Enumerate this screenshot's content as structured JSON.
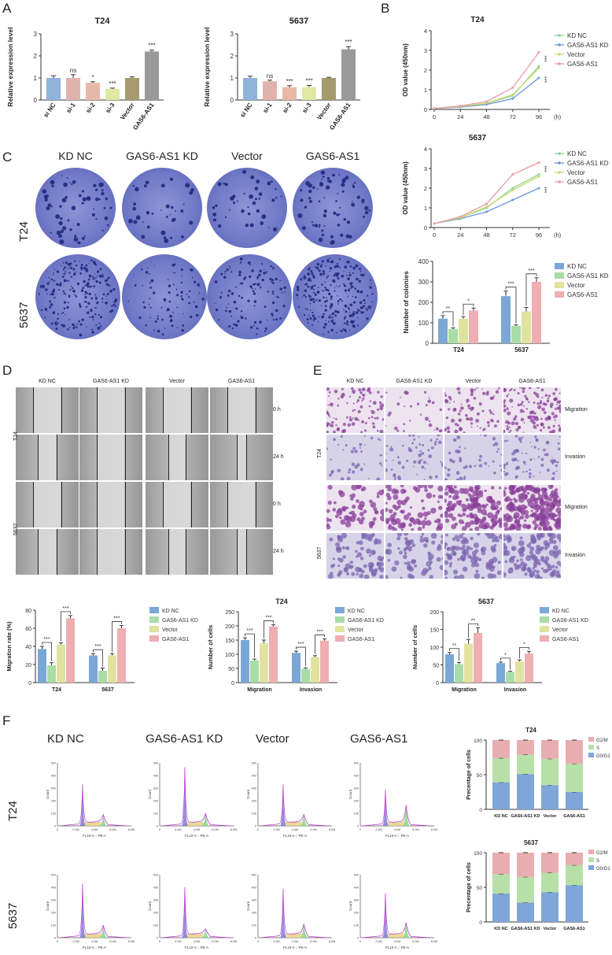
{
  "panels": {
    "a": "A",
    "b": "B",
    "c": "C",
    "d": "D",
    "e": "E",
    "f": "F"
  },
  "colors": {
    "si_nc": "#8fb3da",
    "si_1": "#e0b2ae",
    "si_2": "#e8b8a6",
    "si_3": "#dfe9a2",
    "vector_bar": "#a59b6e",
    "gas6_bar": "#9a9a9a",
    "kd_nc": "#7aa7d6",
    "kd": "#a9dca6",
    "vector": "#e1e2a0",
    "gas6": "#eeaeb2",
    "line_kdnc": "#8fd49a",
    "line_kd": "#6b97d6",
    "line_vector": "#c8da6a",
    "line_gas6": "#ea9aa5",
    "crystal": "#4b53b0",
    "dish": "#6e78c8",
    "g2m": "#e8adb0",
    "s": "#b6e0a8",
    "g0g1": "#7ea6d8"
  },
  "chart_data": [
    {
      "id": "A-T24",
      "type": "bar",
      "title": "T24",
      "ylabel": "Relative expression level",
      "ylim": [
        0,
        3
      ],
      "yticks": [
        "0",
        "1",
        "2",
        "3"
      ],
      "categories": [
        "si NC",
        "si-1",
        "si-2",
        "si-3",
        "Vector",
        "GAS6-AS1"
      ],
      "values": [
        1.0,
        1.0,
        0.78,
        0.5,
        1.0,
        2.2
      ],
      "errors": [
        0.1,
        0.15,
        0.05,
        0.04,
        0.05,
        0.06
      ],
      "significance": [
        "",
        "ns",
        "*",
        "***",
        "",
        "***"
      ]
    },
    {
      "id": "A-5637",
      "type": "bar",
      "title": "5637",
      "ylabel": "Relative expression level",
      "ylim": [
        0,
        3
      ],
      "yticks": [
        "0",
        "1",
        "2",
        "3"
      ],
      "categories": [
        "si NC",
        "si-1",
        "si-2",
        "si-3",
        "Vector",
        "GAS6-AS1"
      ],
      "values": [
        1.0,
        0.85,
        0.58,
        0.58,
        1.0,
        2.3
      ],
      "errors": [
        0.08,
        0.05,
        0.07,
        0.08,
        0.03,
        0.12
      ],
      "significance": [
        "",
        "ns",
        "***",
        "***",
        "",
        "***"
      ]
    },
    {
      "id": "B-T24",
      "type": "line",
      "title": "T24",
      "ylabel": "OD value (450nm)",
      "xlabel": "(h)",
      "ylim": [
        0,
        4
      ],
      "yticks": [
        "0",
        "1",
        "2",
        "3",
        "4"
      ],
      "x": [
        0,
        24,
        48,
        72,
        96
      ],
      "xticks": [
        "0",
        "24",
        "48",
        "72",
        "96"
      ],
      "series": [
        {
          "name": "KD NC",
          "values": [
            0.05,
            0.15,
            0.3,
            0.7,
            2.2
          ]
        },
        {
          "name": "GAS6-AS1 KD",
          "values": [
            0.05,
            0.12,
            0.25,
            0.55,
            1.6
          ]
        },
        {
          "name": "Vector",
          "values": [
            0.05,
            0.15,
            0.32,
            0.75,
            2.1
          ]
        },
        {
          "name": "GAS6-AS1",
          "values": [
            0.05,
            0.18,
            0.4,
            1.1,
            2.9
          ]
        }
      ],
      "significance": [
        "***",
        "***"
      ]
    },
    {
      "id": "B-5637",
      "type": "line",
      "title": "5637",
      "ylabel": "OD value (450nm)",
      "xlabel": "(h)",
      "ylim": [
        0,
        4
      ],
      "yticks": [
        "0",
        "1",
        "2",
        "3",
        "4"
      ],
      "x": [
        0,
        24,
        48,
        72,
        96
      ],
      "xticks": [
        "0",
        "24",
        "48",
        "72",
        "96"
      ],
      "series": [
        {
          "name": "KD NC",
          "values": [
            0.2,
            0.5,
            1.0,
            2.0,
            2.7
          ]
        },
        {
          "name": "GAS6-AS1 KD",
          "values": [
            0.2,
            0.45,
            0.8,
            1.4,
            2.0
          ]
        },
        {
          "name": "Vector",
          "values": [
            0.2,
            0.5,
            1.05,
            1.9,
            2.6
          ]
        },
        {
          "name": "GAS6-AS1",
          "values": [
            0.2,
            0.55,
            1.2,
            2.7,
            3.3
          ]
        }
      ],
      "significance": [
        "***",
        "***"
      ]
    },
    {
      "id": "C-colonies",
      "type": "bar",
      "ylabel": "Number of colonies",
      "ylim": [
        0,
        400
      ],
      "yticks": [
        "0",
        "100",
        "200",
        "300",
        "400"
      ],
      "categories": [
        "T24",
        "5637"
      ],
      "series": [
        {
          "name": "KD NC",
          "values": [
            120,
            230
          ],
          "errors": [
            15,
            25
          ]
        },
        {
          "name": "GAS6-AS1 KD",
          "values": [
            70,
            85
          ],
          "errors": [
            5,
            5
          ]
        },
        {
          "name": "Vector",
          "values": [
            120,
            155
          ],
          "errors": [
            10,
            20
          ]
        },
        {
          "name": "GAS6-AS1",
          "values": [
            160,
            300
          ],
          "errors": [
            12,
            20
          ]
        }
      ],
      "significance": [
        "**",
        "*",
        "***",
        "***"
      ]
    },
    {
      "id": "D-migration",
      "type": "bar",
      "ylabel": "Migration rate (%)",
      "ylim": [
        0,
        80
      ],
      "yticks": [
        "0",
        "20",
        "40",
        "60",
        "80"
      ],
      "categories": [
        "T24",
        "5637"
      ],
      "series": [
        {
          "name": "KD NC",
          "values": [
            37,
            30
          ],
          "errors": [
            3,
            2
          ]
        },
        {
          "name": "GAS6-AS1 KD",
          "values": [
            19,
            13
          ],
          "errors": [
            3,
            3
          ]
        },
        {
          "name": "Vector",
          "values": [
            42,
            30
          ],
          "errors": [
            2,
            2
          ]
        },
        {
          "name": "GAS6-AS1",
          "values": [
            71,
            60
          ],
          "errors": [
            3,
            3
          ]
        }
      ],
      "significance": [
        "***",
        "***",
        "***",
        "***"
      ]
    },
    {
      "id": "E-T24",
      "type": "bar",
      "title": "T24",
      "ylabel": "Number of cells",
      "ylim": [
        0,
        250
      ],
      "yticks": [
        "0",
        "50",
        "100",
        "150",
        "200",
        "250"
      ],
      "categories": [
        "Migration",
        "Invasion"
      ],
      "series": [
        {
          "name": "KD NC",
          "values": [
            150,
            105
          ],
          "errors": [
            8,
            6
          ]
        },
        {
          "name": "GAS6-AS1 KD",
          "values": [
            78,
            48
          ],
          "errors": [
            5,
            4
          ]
        },
        {
          "name": "Vector",
          "values": [
            138,
            90
          ],
          "errors": [
            12,
            5
          ]
        },
        {
          "name": "GAS6-AS1",
          "values": [
            198,
            148
          ],
          "errors": [
            6,
            6
          ]
        }
      ],
      "significance": [
        "***",
        "***",
        "***",
        "***"
      ]
    },
    {
      "id": "E-5637",
      "type": "bar",
      "title": "5637",
      "ylabel": "Number of cells",
      "ylim": [
        0,
        200
      ],
      "yticks": [
        "0",
        "50",
        "100",
        "150",
        "200"
      ],
      "categories": [
        "Migration",
        "Invasion"
      ],
      "series": [
        {
          "name": "KD NC",
          "values": [
            80,
            55
          ],
          "errors": [
            5,
            3
          ]
        },
        {
          "name": "GAS6-AS1 KD",
          "values": [
            52,
            30
          ],
          "errors": [
            5,
            2
          ]
        },
        {
          "name": "Vector",
          "values": [
            110,
            60
          ],
          "errors": [
            12,
            4
          ]
        },
        {
          "name": "GAS6-AS1",
          "values": [
            140,
            82
          ],
          "errors": [
            15,
            6
          ]
        }
      ],
      "significance": [
        "**",
        "**",
        "*",
        "*"
      ]
    },
    {
      "id": "F-T24",
      "type": "bar",
      "stacked": true,
      "title": "T24",
      "ylabel": "Precentage of cells",
      "ylim": [
        0,
        100
      ],
      "yticks": [
        "0",
        "50",
        "100"
      ],
      "categories": [
        "KD NC",
        "GAS6-AS1 KD",
        "Vector",
        "GAS6-AS1"
      ],
      "series": [
        {
          "name": "G0/G1",
          "values": [
            39,
            51,
            35,
            25
          ]
        },
        {
          "name": "S",
          "values": [
            35,
            28,
            38,
            41
          ]
        },
        {
          "name": "G2/M",
          "values": [
            26,
            21,
            27,
            34
          ]
        }
      ]
    },
    {
      "id": "F-5637",
      "type": "bar",
      "stacked": true,
      "title": "5637",
      "ylabel": "Precentage of cells",
      "ylim": [
        0,
        100
      ],
      "yticks": [
        "0",
        "50",
        "100"
      ],
      "categories": [
        "KD NC",
        "GAS6-AS1 KD",
        "Vector",
        "GAS6-AS1"
      ],
      "series": [
        {
          "name": "G0/G1",
          "values": [
            41,
            28,
            43,
            53
          ]
        },
        {
          "name": "S",
          "values": [
            28,
            37,
            28,
            29
          ]
        },
        {
          "name": "G2/M",
          "values": [
            31,
            35,
            29,
            18
          ]
        }
      ]
    }
  ],
  "legends": {
    "b": [
      "KD NC",
      "GAS6-AS1 KD",
      "Vector",
      "GAS6-AS1"
    ],
    "cycle": [
      "G2/M",
      "S",
      "G0/G1"
    ]
  },
  "colony": {
    "columns": [
      "KD NC",
      "GAS6-AS1 KD",
      "Vector",
      "GAS6-AS1"
    ],
    "rows": [
      "T24",
      "5637"
    ]
  },
  "wound": {
    "columns": [
      "KD NC",
      "GAS6-AS1 KD",
      "Vector",
      "GAS6-AS1"
    ],
    "rows": [
      "T24",
      "5637"
    ],
    "times": [
      "0 h",
      "24 h",
      "0 h",
      "24 h"
    ]
  },
  "transwell": {
    "columns": [
      "KD NC",
      "GAS6-AS1 KD",
      "Vector",
      "GAS6-AS1"
    ],
    "rows": [
      "T24",
      "5637"
    ],
    "assays": [
      "Migration",
      "Invasion",
      "Migration",
      "Invasion"
    ]
  },
  "flow": {
    "columns": [
      "KD NC",
      "GAS6-AS1 KD",
      "Vector",
      "GAS6-AS1"
    ],
    "rows": [
      "T24",
      "5637"
    ],
    "xaxis_label": "FL10-A :: PE-A",
    "yaxis_label": "Count",
    "xticks": [
      "0",
      "2.0M",
      "4.0M",
      "6.0M",
      "8.0M"
    ],
    "yticks_t24": [
      "0",
      "100",
      "200",
      "300",
      "400",
      "500"
    ],
    "yticks_5637": [
      "0",
      "100",
      "200",
      "300",
      "400",
      "500"
    ],
    "peaks": [
      {
        "g1": 330,
        "g2": 90
      },
      {
        "g1": 465,
        "g2": 100
      },
      {
        "g1": 330,
        "g2": 90
      },
      {
        "g1": 290,
        "g2": 165
      },
      {
        "g1": 430,
        "g2": 100
      },
      {
        "g1": 400,
        "g2": 70
      },
      {
        "g1": 390,
        "g2": 110
      },
      {
        "g1": 350,
        "g2": 120
      }
    ]
  }
}
